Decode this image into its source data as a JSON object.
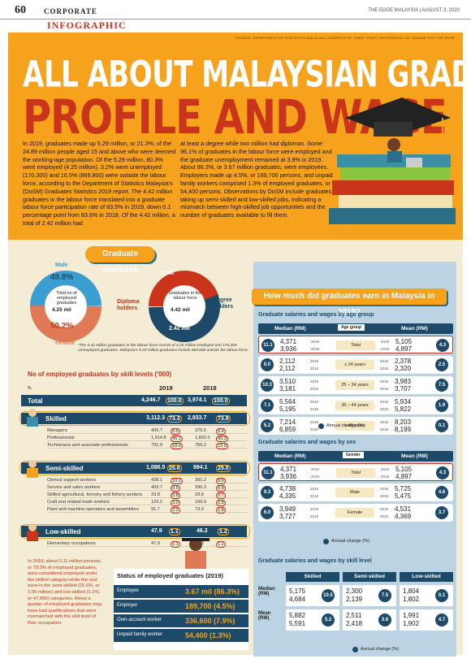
{
  "header": {
    "page": "60",
    "section": "CORPORATE",
    "publication": "THE EDGE MALAYSIA | AUGUST 3, 2020",
    "kicker": "INFOGRAPHIC"
  },
  "credits": "SOURCE: DEPARTMENT OF STATISTICS MALAYSIA | COMPILED BY CINDY YEAP | INFOGRAPHIC BY JOANNE SOO THE EDGE",
  "title": {
    "line1": "ALL ABOUT MALAYSIAN GRADUATES:",
    "line2": "PROFILE AND WAGE"
  },
  "intro": {
    "col1": "In 2019, graduates made up 5.29 million, or 21.3%, of the 24.89 million people aged 15 and above who were deemed the working-age population. Of the 5.29 million, 80.3% were employed (4.25 million), 3.2% were unemployed (170,300) and 16.5% (869,800) were outside the labour force, according to the Department of Statistics Malaysia's (DoSM) Graduates Statistics 2019 report. The 4.42 million graduates in the labour force translated into a graduate labour force participation rate of 83.5% in 2019, down 0.1 percentage point from 83.6% in 2018. Of the 4.42 million, a total of 2.42 million had",
    "col2": "at least a degree while two million had diplomas. Some 96.1% of graduates in the labour force were employed and the graduate unemployment remained at 3.9% in 2019. About 86.3%, or 3.67 million graduates, were employees. Employers made up 4.5%, or 189,700 persons, and unpaid family workers comprised 1.3% of employed graduates, or 54,400 persons. Observations by DoSM include graduates taking up semi-skilled and low-skilled jobs, indicating a mismatch between high-skilled job opportunities and the number of graduates available to fill them."
  },
  "graduate_stats": {
    "heading": "Graduate statistics",
    "gender": {
      "male_label": "Male",
      "male_pct": "49.8%",
      "female_label": "Female",
      "female_pct": "50.2%",
      "center": "Total no of employed graduates",
      "center_value": "4.25 mil"
    },
    "labour": {
      "diploma_value": "2 mil",
      "diploma_label": "Diploma holders",
      "degree_label": "Degree holders",
      "degree_value": "2.42 mil",
      "center": "Graduates in the labour force",
      "center_value": "4.42 mil"
    },
    "note": "*The 4.42 million graduates in the labour force consist of 4.25 million employed and 170,300 unemployed graduates. Malaysia's 5.29 million graduates include 869,800 outside the labour force."
  },
  "skill_table": {
    "heading": "No of employed graduates by skill levels ('000)",
    "pct_key": "%",
    "years": [
      "2019",
      "2018"
    ],
    "total": {
      "label": "Total",
      "v19": "4,246.7",
      "p19": "100.0",
      "v18": "3,974.1",
      "p18": "100.0"
    },
    "groups": [
      {
        "label": "Skilled",
        "v19": "3,112.3",
        "p19": "73.3",
        "v18": "2,933.7",
        "p18": "73.8",
        "rows": [
          [
            "Managers",
            "405.7",
            "9.6",
            "375.5",
            "9.4"
          ],
          [
            "Professionals",
            "1,914.8",
            "45.1",
            "1,802.0",
            "45.3"
          ],
          [
            "Technicians and associate professionals",
            "791.9",
            "18.6",
            "756.2",
            "19.0"
          ]
        ]
      },
      {
        "label": "Semi-skilled",
        "v19": "1,086.5",
        "p19": "25.6",
        "v18": "994.1",
        "p18": "25.0",
        "rows": [
          [
            "Clerical support workers",
            "428.1",
            "10.1",
            "391.2",
            "9.8"
          ],
          [
            "Service and sales workers",
            "403.7",
            "9.5",
            "390.3",
            "9.8"
          ],
          [
            "Skilled agricultural, forestry and fishery workers",
            "33.8",
            "0.8",
            "29.6",
            "0.7"
          ],
          [
            "Craft and related trade workers",
            "129.2",
            "3.0",
            "109.9",
            "2.8"
          ],
          [
            "Plant and machine-operators and assemblers",
            "91.7",
            "2.2",
            "73.0",
            "1.8"
          ]
        ]
      },
      {
        "label": "Low-skilled",
        "v19": "47.9",
        "p19": "1.1",
        "v18": "46.2",
        "p18": "1.2",
        "rows": [
          [
            "Elementary occupations",
            "47.9",
            "1.1",
            "46.2",
            "1.2"
          ]
        ]
      }
    ]
  },
  "side_note": "In 2019, about 3.11 million persons, or 73.3% of employed graduates, were considered employed under the skilled category while the rest were in the semi-skilled (25.6%, or 1.09 million) and low-skilled (1.1%, or 47,900) categories. About a quarter of employed graduates may have had qualifications that were mismatched with the skill level of their occupation.",
  "status": {
    "heading": "Status of employed graduates (2019)",
    "rows": [
      [
        "Employee",
        "3.67 mil (86.3%)"
      ],
      [
        "Employer",
        "189,700 (4.5%)"
      ],
      [
        "Own-account worker",
        "336,600 (7.9%)"
      ],
      [
        "Unpaid family worker",
        "54,400 (1.3%)"
      ]
    ]
  },
  "earnings": {
    "heading": "How much did graduates earn in Malaysia in 2019?",
    "age": {
      "sub": "Graduate salaries and wages by age group",
      "median": "Median (RM)",
      "mean": "Mean (RM)",
      "group": "Age group",
      "rows": [
        [
          "11.1",
          "4,371",
          "3,936",
          "Total",
          "5,105",
          "4,897",
          "4.3"
        ],
        [
          "0.0",
          "2,112",
          "2,112",
          "≤ 24 years",
          "2,378",
          "2,320",
          "2.5"
        ],
        [
          "10.3",
          "3,510",
          "3,181",
          "25 – 34 years",
          "3,983",
          "3,707",
          "7.5"
        ],
        [
          "7.1",
          "5,564",
          "5,195",
          "35 – 44 years",
          "5,934",
          "5,822",
          "1.9"
        ],
        [
          "5.2",
          "7,214",
          "6,859",
          "≥ 45 years",
          "8,203",
          "8,199",
          "0.1"
        ]
      ],
      "years": [
        "2019",
        "2018"
      ],
      "legend": "Annual change (%)"
    },
    "sex": {
      "sub": "Graduate salaries and wages by sex",
      "median": "Median (RM)",
      "mean": "Mean (RM)",
      "group": "Gender",
      "rows": [
        [
          "11.1",
          "4,371",
          "3,936",
          "Total",
          "5,105",
          "4,897",
          "4.3"
        ],
        [
          "9.3",
          "4,738",
          "4,335",
          "Male",
          "5,725",
          "5,475",
          "4.6"
        ],
        [
          "6.0",
          "3,949",
          "3,727",
          "Female",
          "4,531",
          "4,369",
          "3.7"
        ]
      ],
      "legend": "Annual change (%)"
    },
    "skill": {
      "sub": "Graduate salaries and wages by skill level",
      "cols": [
        "Skilled",
        "Semi-skilled",
        "Low-skilled"
      ],
      "median_label": "Median (RM)",
      "mean_label": "Mean (RM)",
      "median": [
        [
          "5,175",
          "4,684",
          "10.5"
        ],
        [
          "2,300",
          "2,139",
          "7.5"
        ],
        [
          "1,804",
          "1,802",
          "0.1"
        ]
      ],
      "mean": [
        [
          "5,882",
          "5,591",
          "5.2"
        ],
        [
          "2,511",
          "2,418",
          "3.8"
        ],
        [
          "1,991",
          "1,902",
          "4.7"
        ]
      ],
      "legend": "Annual change (%)"
    }
  },
  "colors": {
    "orange": "#f7a21c",
    "red": "#c9341b",
    "navy": "#1c4a68",
    "teal": "#2d6e86",
    "cream": "#f4ecd4",
    "blue": "#bcd3e3"
  }
}
